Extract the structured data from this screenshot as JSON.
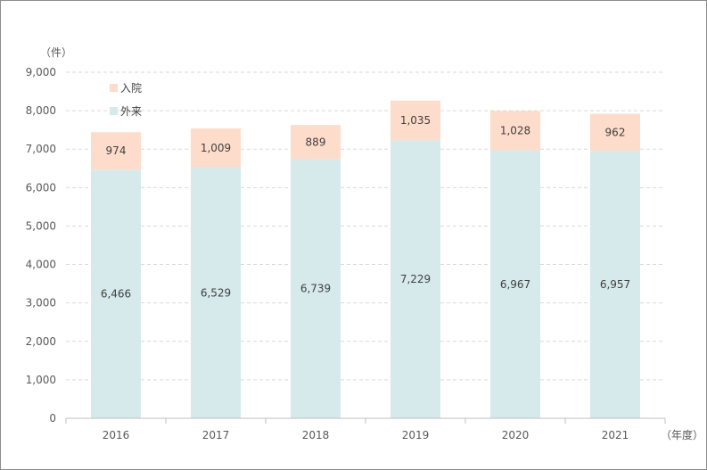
{
  "chart_data": {
    "type": "bar",
    "stacked": true,
    "categories": [
      "2016",
      "2017",
      "2018",
      "2019",
      "2020",
      "2021"
    ],
    "series": [
      {
        "name": "外来",
        "values": [
          6466,
          6529,
          6739,
          7229,
          6967,
          6957
        ],
        "color": "#d6eaec"
      },
      {
        "name": "入院",
        "values": [
          974,
          1009,
          889,
          1035,
          1028,
          962
        ],
        "color": "#fddccb"
      }
    ],
    "y_unit": "（件）",
    "x_unit": "（年度）",
    "ylim": [
      0,
      9000
    ],
    "yticks": [
      0,
      1000,
      2000,
      3000,
      4000,
      5000,
      6000,
      7000,
      8000,
      9000
    ],
    "ytick_labels": [
      "0",
      "1,000",
      "2,000",
      "3,000",
      "4,000",
      "5,000",
      "6,000",
      "7,000",
      "8,000",
      "9,000"
    ],
    "data_labels": [
      [
        "6,466",
        "6,529",
        "6,739",
        "7,229",
        "6,967",
        "6,957"
      ],
      [
        "974",
        "1,009",
        "889",
        "1,035",
        "1,028",
        "962"
      ]
    ],
    "legend": {
      "entries": [
        "入院",
        "外来"
      ],
      "placement": "top-left"
    },
    "grid": true,
    "grid_style": "dashed",
    "grid_color": "#d9d9d9",
    "axis_color": "#bfbfbf"
  }
}
